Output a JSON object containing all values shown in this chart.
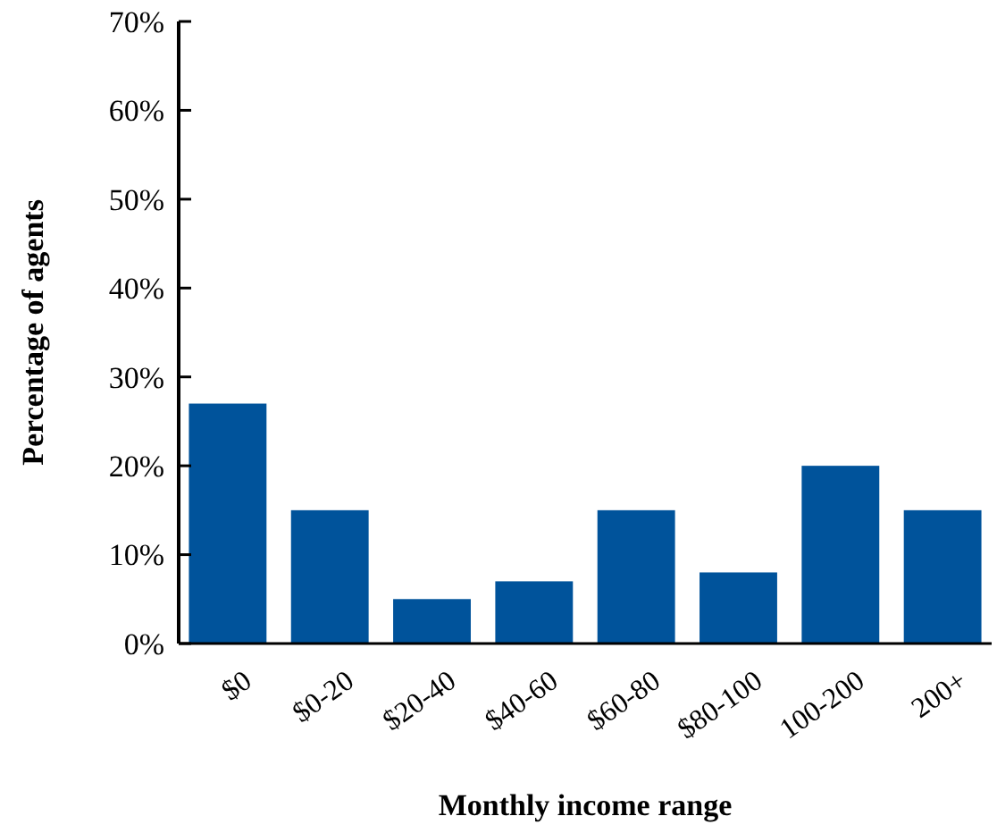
{
  "chart_data": {
    "type": "bar",
    "xlabel": "Monthly income range",
    "ylabel": "Percentage of agents",
    "categories": [
      "$0",
      "$0-20",
      "$20-40",
      "$40-60",
      "$60-80",
      "$80-100",
      "100-200",
      "200+"
    ],
    "values": [
      27,
      15,
      5,
      7,
      15,
      8,
      20,
      15
    ],
    "color": "#00539b",
    "ylim": [
      0,
      70
    ],
    "yticks": [
      {
        "value": 0,
        "label": "0%"
      },
      {
        "value": 10,
        "label": "10%"
      },
      {
        "value": 20,
        "label": "20%"
      },
      {
        "value": 30,
        "label": "30%"
      },
      {
        "value": 40,
        "label": "40%"
      },
      {
        "value": 50,
        "label": "50%"
      },
      {
        "value": 60,
        "label": "60%"
      },
      {
        "value": 70,
        "label": "70%"
      }
    ],
    "grid": false
  }
}
